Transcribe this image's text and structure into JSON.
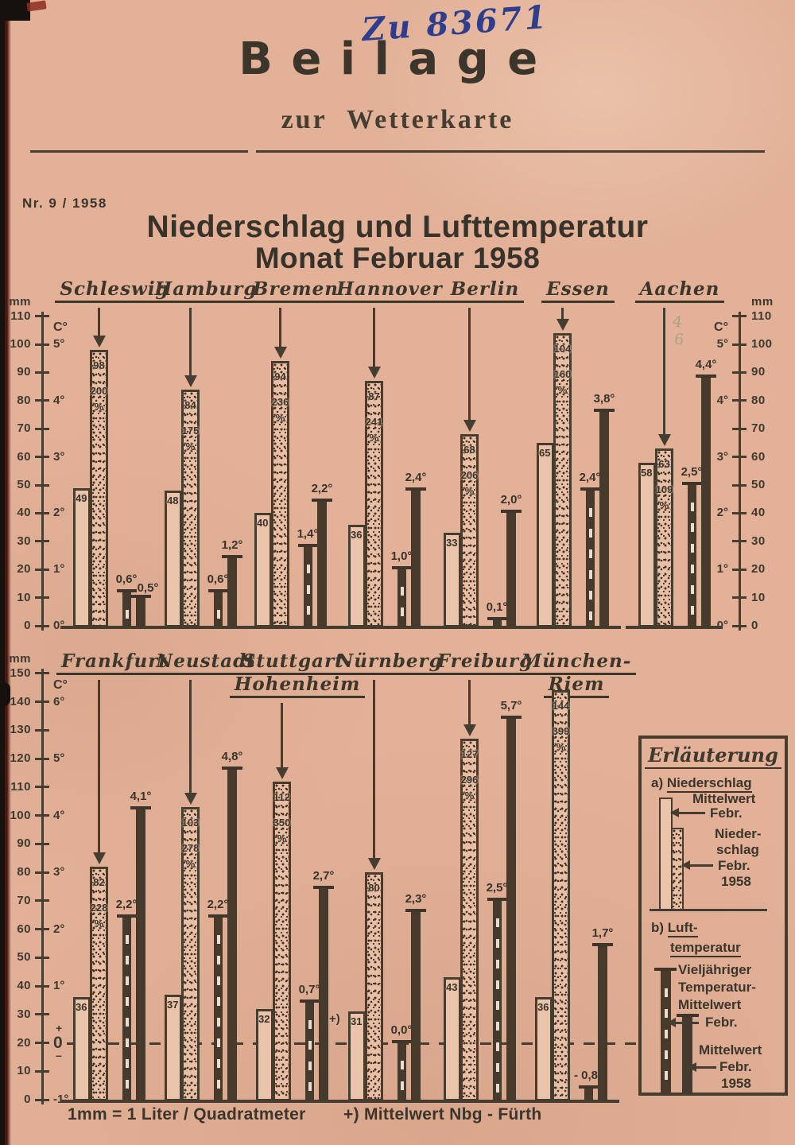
{
  "page": {
    "handwritten_number": "Zu 83671",
    "masthead_title": "Beilage",
    "masthead_subtitle": "zur Wetterkarte",
    "issue_number": "Nr. 9 / 1958",
    "title_line1": "Niederschlag und Lufttemperatur",
    "title_line2": "Monat Februar 1958",
    "footnote_unit": "1mm = 1 Liter / Quadratmeter",
    "footnote_station": "+) Mittelwert Nbg - Fürth",
    "pencil_marks": [
      "4",
      "6"
    ]
  },
  "colors": {
    "paper": "#e2b197",
    "ink": "#3f382e",
    "blue_ink": "#2f3e8c",
    "bar_fill": "#453a2b",
    "pencil": "#7d9673"
  },
  "legend": {
    "title": "Erläuterung",
    "a_prefix": "a)",
    "a_title": "Niederschlag",
    "a1_line1": "Mittelwert",
    "a1_line2": "Febr.",
    "a2_line1": "Nieder-",
    "a2_line2": "schlag",
    "a2_line3": "Febr.",
    "a2_line4": "1958",
    "b_prefix": "b)",
    "b_title1": "Luft-",
    "b_title2": "temperatur",
    "b1_line1": "Vieljähriger",
    "b1_line2": "Temperatur-",
    "b1_line3": "Mittelwert",
    "b1_line4": "Febr.",
    "b2_line1": "Mittelwert",
    "b2_line2": "Febr.",
    "b2_line3": "1958"
  },
  "chart_data": [
    {
      "type": "bar",
      "row": "north",
      "units": {
        "precip": "mm",
        "temp": "C°"
      },
      "percent_sign": "%",
      "double_axis": true,
      "grid": false,
      "zero_line_mm": null,
      "mm_axis": {
        "min": 0,
        "max": 110,
        "step": 10,
        "tick_labels": [
          0,
          10,
          20,
          30,
          40,
          50,
          60,
          70,
          80,
          90,
          100,
          110
        ]
      },
      "temp_axis": {
        "zero_mm": 0,
        "mm_per_degree": 20,
        "ticks": [
          {
            "label": "0°",
            "mm": 0
          },
          {
            "label": "1°",
            "mm": 20
          },
          {
            "label": "2°",
            "mm": 40
          },
          {
            "label": "3°",
            "mm": 60
          },
          {
            "label": "4°",
            "mm": 80
          },
          {
            "label": "5°",
            "mm": 100
          }
        ]
      },
      "cities": [
        {
          "name": "Schleswig",
          "precip_mean_mm": 49,
          "precip_1958_mm": 98,
          "precip_1958_percent": "200",
          "temp_longterm": {
            "value": 0.6,
            "label": "0,6°"
          },
          "temp_1958": {
            "value": 0.5,
            "label": "0,5°"
          }
        },
        {
          "name": "Hamburg",
          "precip_mean_mm": 48,
          "precip_1958_mm": 84,
          "precip_1958_percent": "175",
          "temp_longterm": {
            "value": 0.6,
            "label": "0,6°"
          },
          "temp_1958": {
            "value": 1.2,
            "label": "1,2°"
          }
        },
        {
          "name": "Bremen",
          "precip_mean_mm": 40,
          "precip_1958_mm": 94,
          "precip_1958_percent": "236",
          "temp_longterm": {
            "value": 1.4,
            "label": "1,4°"
          },
          "temp_1958": {
            "value": 2.2,
            "label": "2,2°"
          }
        },
        {
          "name": "Hannover",
          "precip_mean_mm": 36,
          "precip_1958_mm": 87,
          "precip_1958_percent": "241",
          "temp_longterm": {
            "value": 1.0,
            "label": "1,0°"
          },
          "temp_1958": {
            "value": 2.4,
            "label": "2,4°"
          }
        },
        {
          "name": "Berlin",
          "precip_mean_mm": 33,
          "precip_1958_mm": 68,
          "precip_1958_percent": "206",
          "temp_longterm": {
            "value": 0.1,
            "label": "0,1°"
          },
          "temp_1958": {
            "value": 2.0,
            "label": "2,0°"
          }
        },
        {
          "name": "Essen",
          "precip_mean_mm": 65,
          "precip_1958_mm": 104,
          "precip_1958_percent": "160",
          "temp_longterm": {
            "value": 2.4,
            "label": "2,4°"
          },
          "temp_1958": {
            "value": 3.8,
            "label": "3,8°"
          }
        },
        {
          "name": "Aachen",
          "precip_mean_mm": 58,
          "precip_1958_mm": 63,
          "precip_1958_percent": "109",
          "temp_longterm": {
            "value": 2.5,
            "label": "2,5°"
          },
          "temp_1958": {
            "value": 4.4,
            "label": "4,4°"
          }
        }
      ]
    },
    {
      "type": "bar",
      "row": "south",
      "units": {
        "precip": "mm",
        "temp": "C°"
      },
      "percent_sign": "%",
      "double_axis": false,
      "grid": false,
      "zero_line_mm": 20,
      "mm_axis": {
        "min": 0,
        "max": 150,
        "step": 10,
        "tick_labels": [
          0,
          10,
          20,
          30,
          40,
          50,
          60,
          70,
          80,
          90,
          100,
          110,
          120,
          130,
          140,
          150
        ]
      },
      "temp_axis": {
        "zero_mm": 20,
        "mm_per_degree": 20,
        "ticks": [
          {
            "label": "-1°",
            "mm": 0
          },
          {
            "label": "0",
            "mm": 20,
            "sign_above": "+",
            "sign_below": "–"
          },
          {
            "label": "1°",
            "mm": 40
          },
          {
            "label": "2°",
            "mm": 60
          },
          {
            "label": "3°",
            "mm": 80
          },
          {
            "label": "4°",
            "mm": 100
          },
          {
            "label": "5°",
            "mm": 120
          },
          {
            "label": "6°",
            "mm": 140
          }
        ]
      },
      "cities": [
        {
          "name": "Frankfurt",
          "precip_mean_mm": 36,
          "precip_1958_mm": 82,
          "precip_1958_percent": "228",
          "temp_longterm": {
            "value": 2.2,
            "label": "2,2°"
          },
          "temp_1958": {
            "value": 4.1,
            "label": "4,1°"
          }
        },
        {
          "name": "Neustadt",
          "precip_mean_mm": 37,
          "precip_1958_mm": 103,
          "precip_1958_percent": "278",
          "temp_longterm": {
            "value": 2.2,
            "label": "2,2°"
          },
          "temp_1958": {
            "value": 4.8,
            "label": "4,8°"
          }
        },
        {
          "name": "Stuttgart-",
          "name_line2": "Hohenheim",
          "precip_mean_mm": 32,
          "precip_1958_mm": 112,
          "precip_1958_percent": "350",
          "temp_longterm": {
            "value": 0.7,
            "label": "0,7°"
          },
          "temp_1958": {
            "value": 2.7,
            "label": "2,7°"
          }
        },
        {
          "name": "Nürnberg",
          "footnote_mark": "+)",
          "precip_mean_mm": 31,
          "precip_1958_mm": 80,
          "precip_1958_percent": null,
          "temp_longterm": {
            "value": 0.0,
            "label": "0,0°"
          },
          "temp_1958": {
            "value": 2.3,
            "label": "2,3°"
          }
        },
        {
          "name": "Freiburg",
          "precip_mean_mm": 43,
          "precip_1958_mm": 127,
          "precip_1958_percent": "296",
          "temp_longterm": {
            "value": 2.5,
            "label": "2,5°"
          },
          "temp_1958": {
            "value": 5.7,
            "label": "5,7°"
          }
        },
        {
          "name": "München-",
          "name_line2": "Riem",
          "precip_mean_mm": 36,
          "precip_1958_mm": 144,
          "precip_1958_percent": "399",
          "temp_longterm": {
            "value": -0.8,
            "label": "- 0,8°"
          },
          "temp_1958": {
            "value": 1.7,
            "label": "1,7°"
          }
        }
      ]
    }
  ]
}
